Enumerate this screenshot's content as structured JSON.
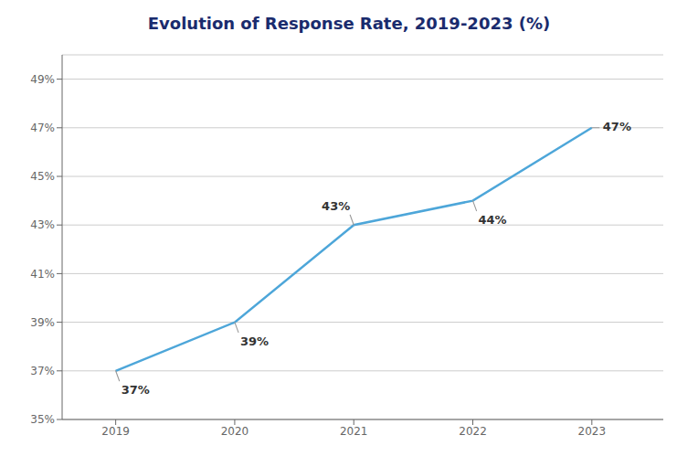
{
  "chart_data": {
    "type": "line",
    "title": "Evolution of Response Rate, 2019-2023 (%)",
    "x": [
      2019,
      2020,
      2021,
      2022,
      2023
    ],
    "values": [
      37,
      39,
      43,
      44,
      47
    ],
    "value_labels": [
      "37%",
      "39%",
      "43%",
      "44%",
      "47%"
    ],
    "data_labels": true,
    "color": "#4da6d9",
    "xlim": [
      2018.55,
      2023.6
    ],
    "xticks": [
      2019,
      2020,
      2021,
      2022,
      2023
    ],
    "ylim": [
      35,
      50
    ],
    "yticks": [
      {
        "value": 35,
        "label": "35%"
      },
      {
        "value": 37,
        "label": "37%"
      },
      {
        "value": 39,
        "label": "39%"
      },
      {
        "value": 41,
        "label": "41%"
      },
      {
        "value": 43,
        "label": "43%"
      },
      {
        "value": 45,
        "label": "45%"
      },
      {
        "value": 47,
        "label": "47%"
      },
      {
        "value": 49,
        "label": "49%"
      }
    ],
    "grid": true
  }
}
